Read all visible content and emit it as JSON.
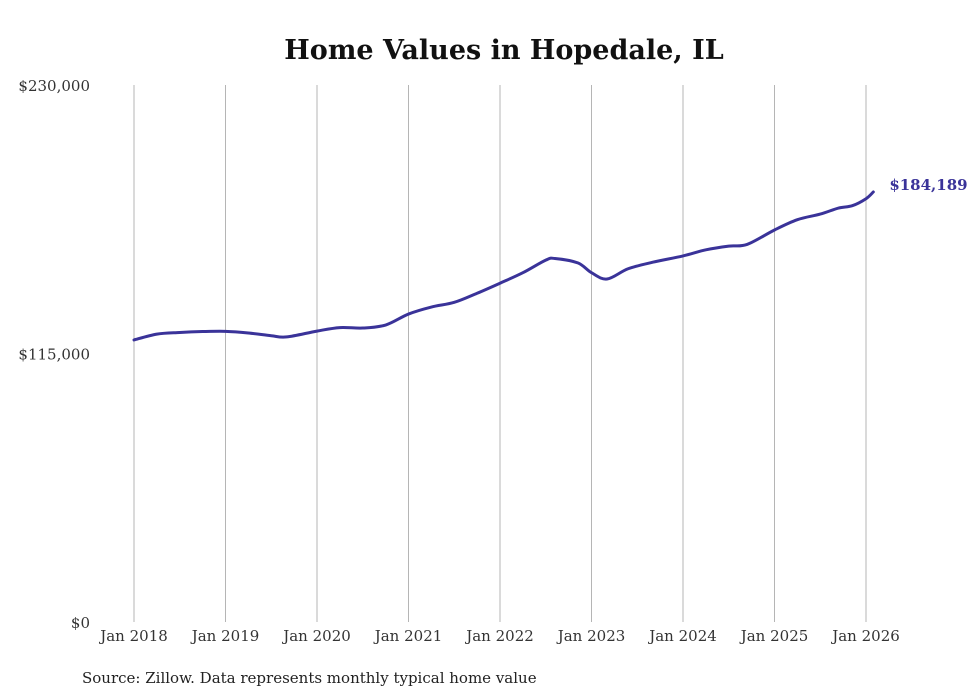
{
  "chart_data": {
    "type": "line",
    "title": "Home Values in Hopedale, IL",
    "xlabel": "",
    "ylabel": "",
    "ylim": [
      0,
      230000
    ],
    "xlim": [
      2018,
      2026.1
    ],
    "y_ticks": [
      {
        "value": 0,
        "label": "$0"
      },
      {
        "value": 115000,
        "label": "$115,000"
      },
      {
        "value": 230000,
        "label": "$230,000"
      }
    ],
    "x_ticks": [
      {
        "value": 2018,
        "label": "Jan 2018"
      },
      {
        "value": 2019,
        "label": "Jan 2019"
      },
      {
        "value": 2020,
        "label": "Jan 2020"
      },
      {
        "value": 2021,
        "label": "Jan 2021"
      },
      {
        "value": 2022,
        "label": "Jan 2022"
      },
      {
        "value": 2023,
        "label": "Jan 2023"
      },
      {
        "value": 2024,
        "label": "Jan 2024"
      },
      {
        "value": 2025,
        "label": "Jan 2025"
      },
      {
        "value": 2026,
        "label": "Jan 2026"
      }
    ],
    "grid": "vertical",
    "series": [
      {
        "name": "Typical home value",
        "color": "#3a3399",
        "x": [
          2018.0,
          2018.25,
          2018.5,
          2018.75,
          2019.0,
          2019.25,
          2019.5,
          2019.67,
          2020.0,
          2020.25,
          2020.5,
          2020.75,
          2021.0,
          2021.25,
          2021.5,
          2021.75,
          2022.0,
          2022.25,
          2022.5,
          2022.6,
          2022.85,
          2023.0,
          2023.17,
          2023.4,
          2023.67,
          2024.0,
          2024.25,
          2024.5,
          2024.7,
          2025.0,
          2025.25,
          2025.5,
          2025.7,
          2025.85,
          2026.0,
          2026.08
        ],
        "values": [
          120800,
          123300,
          124000,
          124400,
          124500,
          123800,
          122600,
          122100,
          124600,
          126100,
          125900,
          127200,
          131900,
          134900,
          136900,
          140800,
          145100,
          149600,
          155000,
          155700,
          153800,
          149600,
          146900,
          151300,
          154100,
          156800,
          159400,
          161000,
          161700,
          167900,
          172300,
          174700,
          177300,
          178300,
          181300,
          184189
        ]
      }
    ],
    "end_label": "$184,189",
    "source": "Source: Zillow. Data represents monthly typical home value"
  }
}
